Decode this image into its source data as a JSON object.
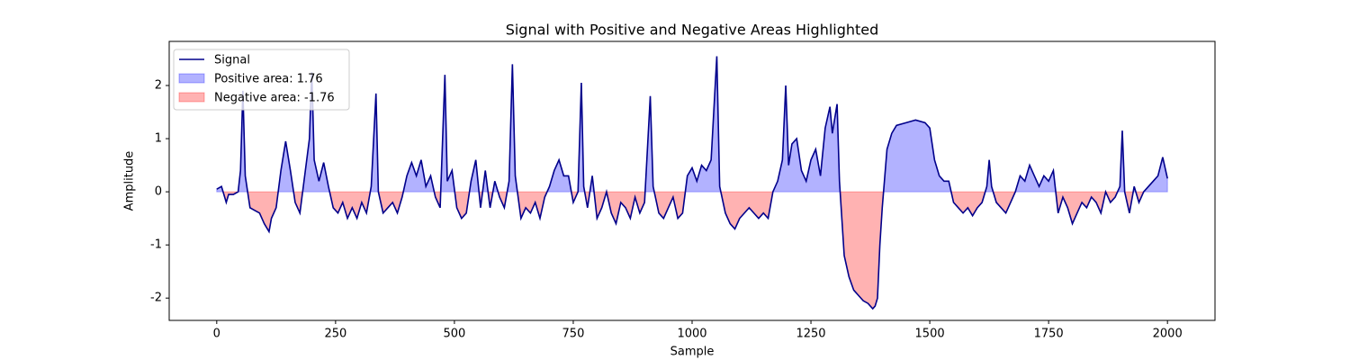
{
  "chart_data": {
    "type": "line",
    "title": "Signal with Positive and Negative Areas Highlighted",
    "x_label": "Sample",
    "y_label": "Amplitude",
    "xlim": [
      -100,
      2100
    ],
    "ylim": [
      -2.42,
      2.83
    ],
    "xticks": [
      0,
      250,
      500,
      750,
      1000,
      1250,
      1500,
      1750,
      2000
    ],
    "yticks": [
      -2,
      -1,
      0,
      1,
      2
    ],
    "legend": "upper left",
    "series": [
      {
        "name": "Signal",
        "color": "#00008b",
        "x": [
          0,
          10,
          20,
          25,
          35,
          45,
          50,
          55,
          60,
          70,
          80,
          90,
          100,
          110,
          115,
          125,
          135,
          145,
          155,
          165,
          175,
          185,
          195,
          200,
          205,
          215,
          225,
          235,
          245,
          255,
          265,
          275,
          285,
          295,
          305,
          315,
          325,
          335,
          340,
          350,
          360,
          370,
          380,
          390,
          400,
          410,
          420,
          430,
          440,
          450,
          460,
          470,
          480,
          485,
          495,
          505,
          515,
          525,
          535,
          545,
          555,
          565,
          575,
          585,
          595,
          605,
          615,
          622,
          628,
          640,
          650,
          660,
          670,
          680,
          690,
          700,
          710,
          720,
          730,
          740,
          750,
          760,
          767,
          772,
          780,
          790,
          800,
          810,
          820,
          830,
          840,
          850,
          860,
          870,
          880,
          890,
          900,
          912,
          918,
          930,
          940,
          950,
          960,
          970,
          980,
          990,
          1000,
          1010,
          1020,
          1030,
          1040,
          1052,
          1058,
          1070,
          1080,
          1090,
          1100,
          1110,
          1120,
          1130,
          1140,
          1150,
          1160,
          1170,
          1180,
          1190,
          1197,
          1203,
          1210,
          1220,
          1230,
          1240,
          1250,
          1260,
          1270,
          1280,
          1290,
          1295,
          1305,
          1310,
          1320,
          1330,
          1340,
          1350,
          1360,
          1370,
          1380,
          1385,
          1390,
          1395,
          1400,
          1410,
          1420,
          1430,
          1450,
          1470,
          1490,
          1500,
          1510,
          1520,
          1530,
          1540,
          1550,
          1560,
          1570,
          1580,
          1590,
          1600,
          1610,
          1620,
          1625,
          1630,
          1640,
          1650,
          1660,
          1670,
          1680,
          1690,
          1700,
          1710,
          1720,
          1730,
          1740,
          1750,
          1760,
          1770,
          1780,
          1790,
          1800,
          1810,
          1820,
          1830,
          1840,
          1850,
          1860,
          1870,
          1880,
          1890,
          1900,
          1905,
          1910,
          1920,
          1930,
          1940,
          1950,
          1960,
          1970,
          1980,
          1990,
          2000
        ],
        "values": [
          0.05,
          0.1,
          -0.2,
          -0.05,
          -0.05,
          0.0,
          0.4,
          1.9,
          0.3,
          -0.3,
          -0.35,
          -0.4,
          -0.6,
          -0.75,
          -0.5,
          -0.3,
          0.4,
          0.95,
          0.4,
          -0.2,
          -0.4,
          0.3,
          1.0,
          2.25,
          0.6,
          0.2,
          0.55,
          0.1,
          -0.3,
          -0.4,
          -0.2,
          -0.5,
          -0.3,
          -0.5,
          -0.2,
          -0.4,
          0.1,
          1.85,
          0.0,
          -0.4,
          -0.3,
          -0.2,
          -0.4,
          -0.1,
          0.3,
          0.55,
          0.3,
          0.6,
          0.1,
          0.3,
          -0.1,
          -0.3,
          2.2,
          0.2,
          0.4,
          -0.3,
          -0.5,
          -0.4,
          0.2,
          0.6,
          -0.3,
          0.4,
          -0.3,
          0.2,
          -0.1,
          -0.3,
          0.2,
          2.4,
          0.3,
          -0.5,
          -0.3,
          -0.4,
          -0.2,
          -0.5,
          -0.1,
          0.1,
          0.4,
          0.6,
          0.3,
          0.3,
          -0.2,
          0.0,
          2.05,
          0.1,
          -0.3,
          0.3,
          -0.5,
          -0.3,
          0.0,
          -0.4,
          -0.6,
          -0.2,
          -0.3,
          -0.5,
          -0.1,
          -0.4,
          -0.2,
          1.8,
          0.1,
          -0.4,
          -0.5,
          -0.3,
          -0.1,
          -0.5,
          -0.4,
          0.3,
          0.45,
          0.2,
          0.5,
          0.4,
          0.6,
          2.55,
          0.1,
          -0.4,
          -0.6,
          -0.7,
          -0.5,
          -0.4,
          -0.3,
          -0.4,
          -0.5,
          -0.4,
          -0.5,
          0.0,
          0.2,
          0.6,
          2.0,
          0.5,
          0.9,
          1.0,
          0.4,
          0.2,
          0.6,
          0.8,
          0.3,
          1.2,
          1.6,
          1.1,
          1.65,
          0.2,
          -1.2,
          -1.6,
          -1.85,
          -1.95,
          -2.05,
          -2.1,
          -2.2,
          -2.15,
          -2.0,
          -1.0,
          -0.3,
          0.8,
          1.1,
          1.25,
          1.3,
          1.35,
          1.3,
          1.2,
          0.6,
          0.3,
          0.2,
          0.2,
          -0.2,
          -0.3,
          -0.4,
          -0.3,
          -0.45,
          -0.3,
          -0.2,
          0.1,
          0.6,
          0.1,
          -0.2,
          -0.3,
          -0.4,
          -0.2,
          0.0,
          0.3,
          0.2,
          0.5,
          0.3,
          0.1,
          0.3,
          0.2,
          0.4,
          -0.4,
          -0.1,
          -0.3,
          -0.6,
          -0.4,
          -0.2,
          -0.3,
          -0.1,
          -0.2,
          -0.4,
          0.0,
          -0.2,
          -0.1,
          0.1,
          1.15,
          0.0,
          -0.4,
          0.1,
          -0.2,
          0.0,
          0.1,
          0.2,
          0.3,
          0.65,
          0.25
        ]
      }
    ],
    "positive_area": {
      "name": "Positive area: 1.76",
      "color": "#0000ff"
    },
    "negative_area": {
      "name": "Negative area: -1.76",
      "color": "#ff0000"
    }
  }
}
